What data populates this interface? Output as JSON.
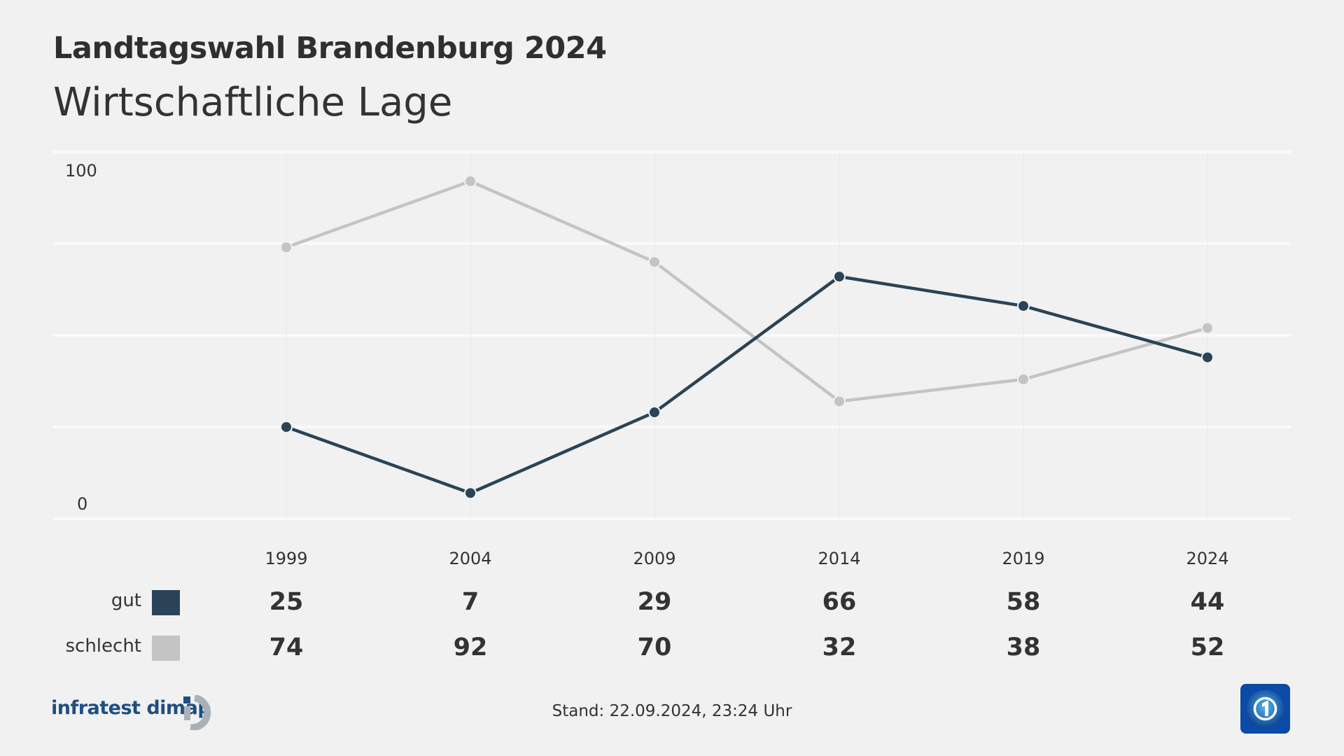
{
  "header": {
    "title": "Landtagswahl Brandenburg 2024",
    "subtitle": "Wirtschaftliche Lage"
  },
  "chart_data": {
    "type": "line",
    "categories": [
      "1999",
      "2004",
      "2009",
      "2014",
      "2019",
      "2024"
    ],
    "ylim": [
      0,
      100
    ],
    "yticks": [
      "0",
      "100"
    ],
    "grid": true,
    "series": [
      {
        "name": "gut",
        "color": "#2a4356",
        "values": [
          25,
          7,
          29,
          66,
          58,
          44
        ]
      },
      {
        "name": "schlecht",
        "color": "#c4c4c4",
        "values": [
          74,
          92,
          70,
          32,
          38,
          52
        ]
      }
    ]
  },
  "footer": {
    "stand": "Stand:  22.09.2024, 23:24 Uhr",
    "brand": "infratest dimap",
    "brand_color": "#1f4e82",
    "broadcaster_icon": "tagesschau-globe-1-icon"
  }
}
